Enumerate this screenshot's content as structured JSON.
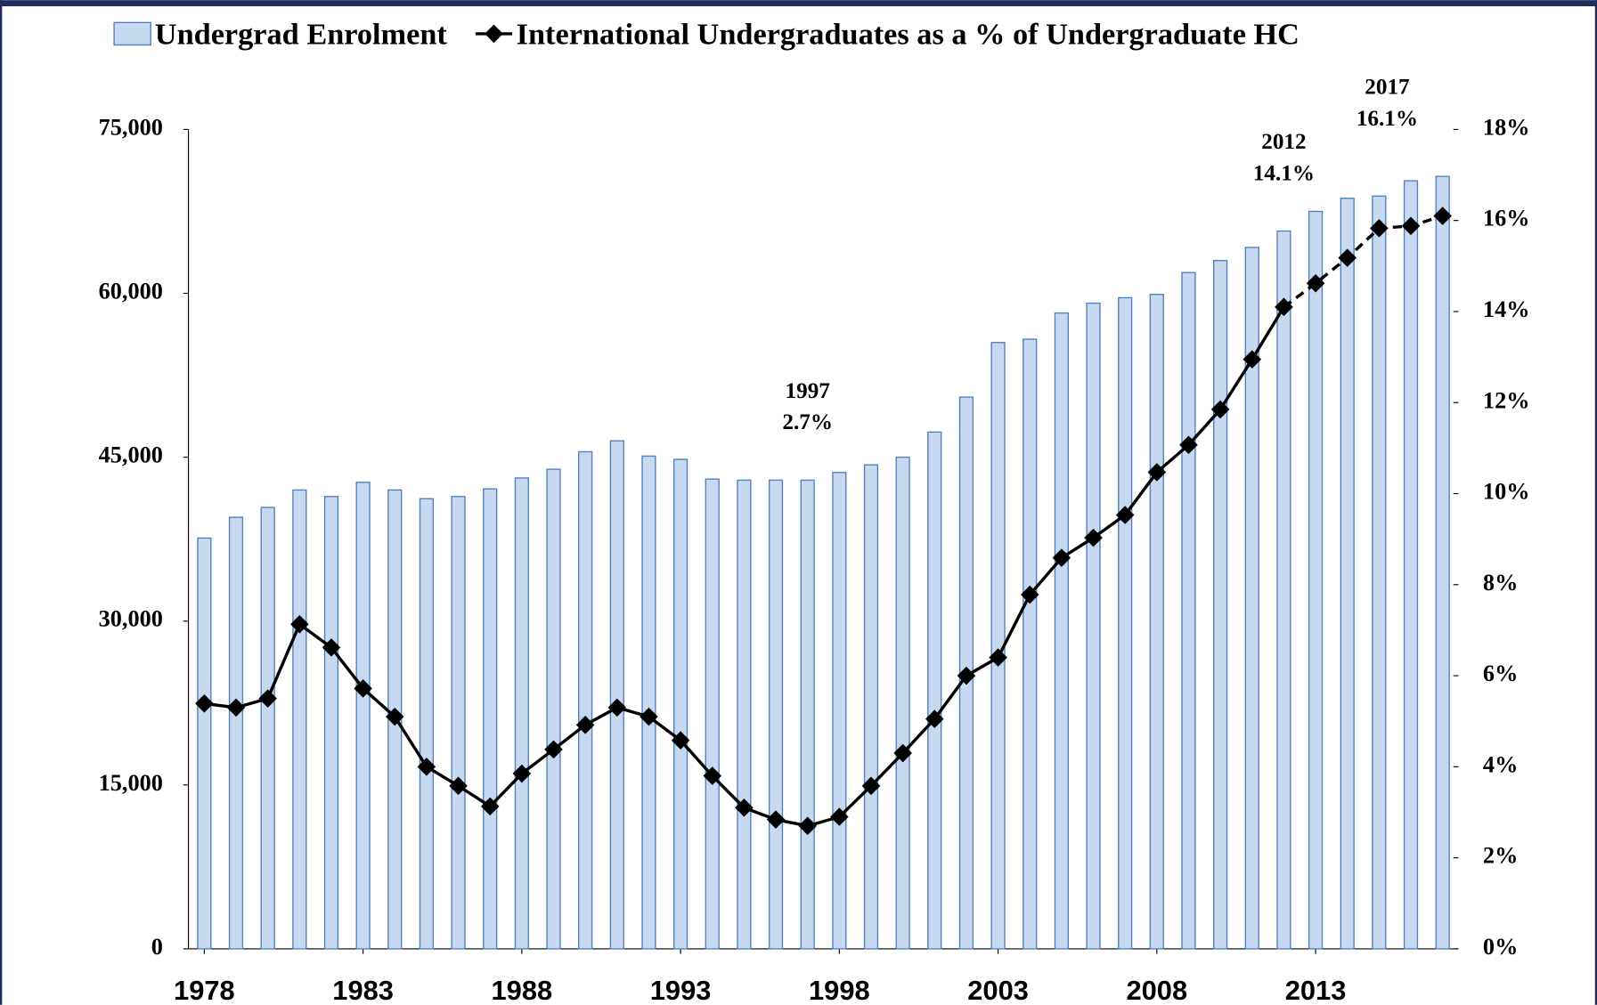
{
  "chart_data": {
    "type": "bar_line",
    "x": [
      1978,
      1979,
      1980,
      1981,
      1982,
      1983,
      1984,
      1985,
      1986,
      1987,
      1988,
      1989,
      1990,
      1991,
      1992,
      1993,
      1994,
      1995,
      1996,
      1997,
      1998,
      1999,
      2000,
      2001,
      2002,
      2003,
      2004,
      2005,
      2006,
      2007,
      2008,
      2009,
      2010,
      2011,
      2012,
      2013,
      2014,
      2015,
      2016,
      2017
    ],
    "xlim": [
      1977.5,
      2017.5
    ],
    "xticks": [
      1978,
      1983,
      1988,
      1993,
      1998,
      2003,
      2008,
      2013
    ],
    "series": [
      {
        "name": "Undergrad Enrolment",
        "type": "bar",
        "color": "#c6d9f1",
        "edge_color": "#4f81bd",
        "values": [
          37600,
          39500,
          40400,
          42000,
          41400,
          42700,
          42000,
          41200,
          41400,
          42100,
          43100,
          43900,
          45500,
          46500,
          45100,
          44800,
          43000,
          42900,
          42900,
          42900,
          43600,
          44300,
          45000,
          47300,
          50500,
          55500,
          55800,
          58200,
          59100,
          59600,
          59900,
          61900,
          63000,
          64200,
          65700,
          67500,
          68700,
          68900,
          70300,
          70700
        ]
      },
      {
        "name": "International Undergraduates as a % of Undergraduate HC",
        "type": "line",
        "axis": "y2",
        "color": "#000000",
        "marker": "diamond",
        "dashed_from": 2012,
        "values": [
          5.39,
          5.3,
          5.5,
          7.13,
          6.62,
          5.72,
          5.1,
          4.0,
          3.58,
          3.13,
          3.85,
          4.38,
          4.92,
          5.3,
          5.1,
          4.58,
          3.8,
          3.1,
          2.84,
          2.7,
          2.9,
          3.58,
          4.3,
          5.05,
          6.0,
          6.4,
          7.78,
          8.59,
          9.03,
          9.53,
          10.47,
          11.07,
          11.85,
          12.95,
          14.1,
          14.62,
          15.18,
          15.83,
          15.88,
          16.1
        ]
      }
    ],
    "ylim": [
      0,
      75000
    ],
    "yticks": [
      0,
      {
        "value": 15000,
        "label": "15,000"
      },
      {
        "value": 30000,
        "label": "30,000"
      },
      {
        "value": 45000,
        "label": "45,000"
      },
      {
        "value": 60000,
        "label": "60,000"
      },
      {
        "value": 75000,
        "label": "75,000"
      }
    ],
    "y2lim": [
      0,
      18
    ],
    "y2ticks": [
      {
        "value": 0,
        "label": "0%"
      },
      {
        "value": 2,
        "label": "2%"
      },
      {
        "value": 4,
        "label": "4%"
      },
      {
        "value": 6,
        "label": "6%"
      },
      {
        "value": 8,
        "label": "8%"
      },
      {
        "value": 10,
        "label": "10%"
      },
      {
        "value": 12,
        "label": "12%"
      },
      {
        "value": 14,
        "label": "14%"
      },
      {
        "value": 16,
        "label": "16%"
      },
      {
        "value": 18,
        "label": "18%"
      }
    ],
    "annotations": [
      {
        "x": 1997,
        "text": "2.7%"
      },
      {
        "x": 2012,
        "text": "14.1%"
      },
      {
        "x": 2017,
        "text": "16.1%"
      }
    ],
    "legend": "top"
  }
}
